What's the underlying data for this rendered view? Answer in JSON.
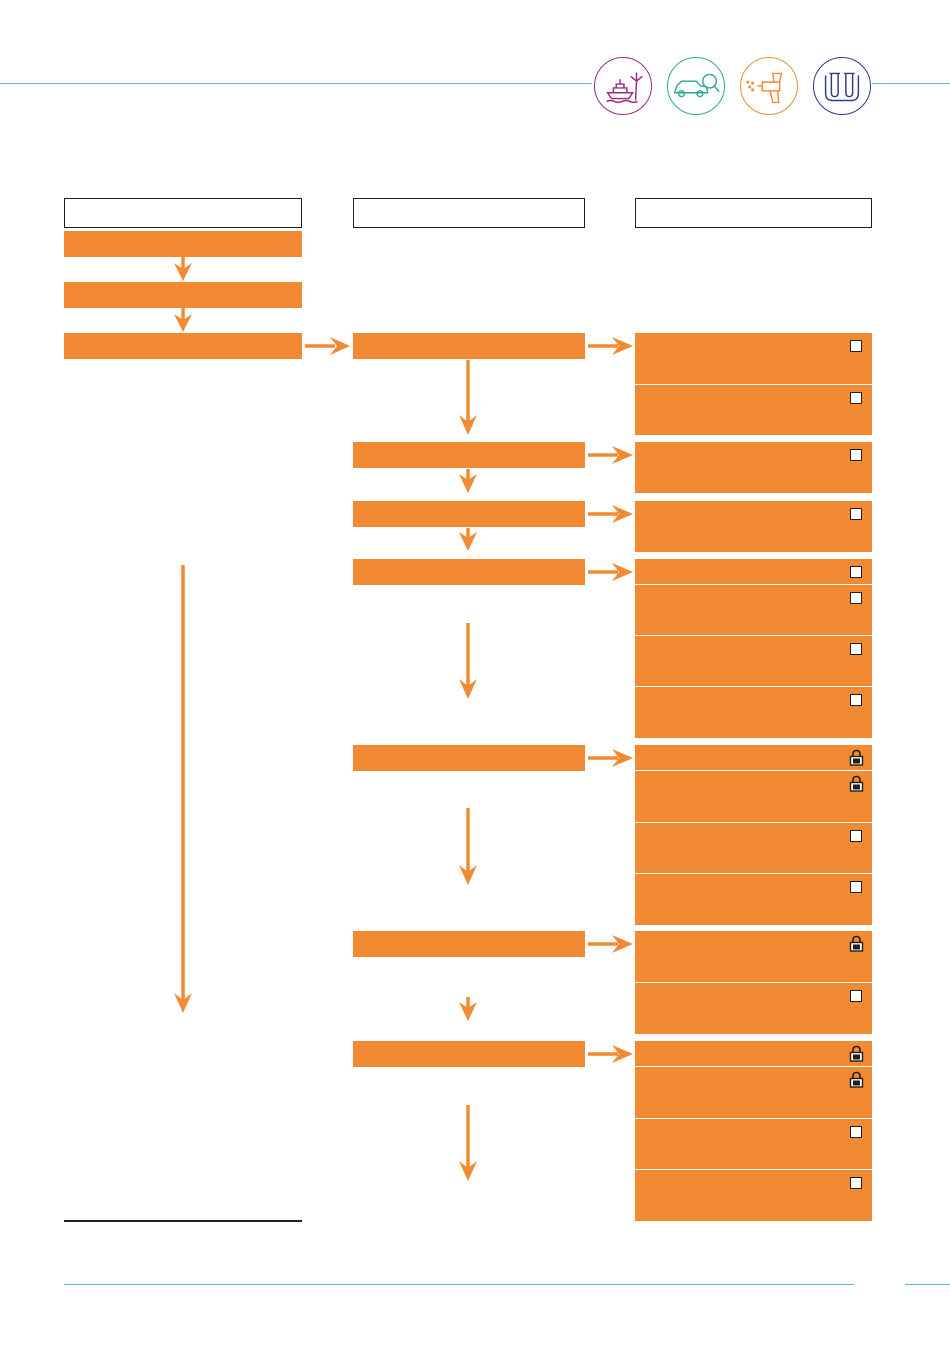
{
  "colors": {
    "accent_orange": "#f28a33",
    "rule_teal": "#5bb8c9",
    "icon_marine": "#9c2a7f",
    "icon_automotive": "#2ba89a",
    "icon_coating": "#f28a33",
    "icon_lab": "#2d3a8c"
  },
  "top_icons": [
    {
      "name": "ship-wind-turbine-icon"
    },
    {
      "name": "car-magnifier-icon"
    },
    {
      "name": "spray-gun-icon"
    },
    {
      "name": "test-tubes-icon"
    }
  ],
  "column_headers": [
    "",
    "",
    ""
  ],
  "left_steps": [
    "",
    "",
    ""
  ],
  "middle_steps": [
    "",
    "",
    "",
    "",
    "",
    "",
    ""
  ],
  "right_cells": [
    {
      "marker": "checkbox"
    },
    {
      "marker": "checkbox"
    },
    {
      "marker": "checkbox"
    },
    {
      "marker": "checkbox"
    },
    {
      "marker": "checkbox"
    },
    {
      "marker": "checkbox"
    },
    {
      "marker": "checkbox"
    },
    {
      "marker": "checkbox"
    },
    {
      "marker": "lock"
    },
    {
      "marker": "lock"
    },
    {
      "marker": "checkbox"
    },
    {
      "marker": "checkbox"
    },
    {
      "marker": "lock"
    },
    {
      "marker": "checkbox"
    },
    {
      "marker": "lock"
    },
    {
      "marker": "lock"
    },
    {
      "marker": "checkbox"
    },
    {
      "marker": "checkbox"
    }
  ]
}
